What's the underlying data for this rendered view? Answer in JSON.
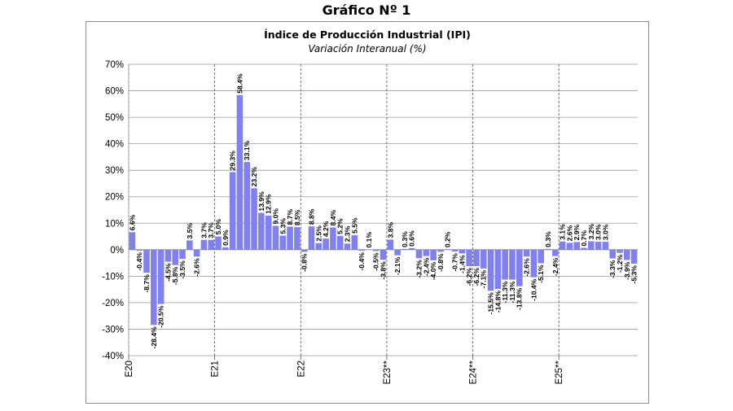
{
  "figure_title": "Gráfico Nº 1",
  "chart_data": {
    "type": "bar",
    "title": "Índice de Producción Industrial (IPI)",
    "subtitle": "Variación Interanual (%)",
    "xlabel": "",
    "ylabel": "",
    "ylim": [
      -40,
      70
    ],
    "ytick_values": [
      70,
      60,
      50,
      40,
      30,
      20,
      10,
      0,
      -10,
      -20,
      -30,
      -40
    ],
    "ytick_labels": [
      "70%",
      "60%",
      "50%",
      "40%",
      "30%",
      "20%",
      "10%",
      "0%",
      "-10%",
      "-20%",
      "-30%",
      "-40%"
    ],
    "grid": {
      "horizontal": true,
      "vertical_dashed_at_year_start": true
    },
    "bar_color": "#8080f0",
    "year_ticks": [
      {
        "index": 0,
        "label": "E20"
      },
      {
        "index": 12,
        "label": "E21"
      },
      {
        "index": 24,
        "label": "E22"
      },
      {
        "index": 36,
        "label": "E23**"
      },
      {
        "index": 48,
        "label": "E24**"
      },
      {
        "index": 60,
        "label": "E25**"
      }
    ],
    "values": [
      6.6,
      -0.4,
      -8.7,
      -28.4,
      -20.5,
      -4.5,
      -5.8,
      -3.5,
      3.5,
      -2.6,
      3.7,
      3.7,
      5.0,
      0.9,
      29.3,
      58.4,
      33.1,
      23.2,
      13.9,
      12.9,
      9.0,
      5.3,
      8.7,
      8.5,
      -0.8,
      8.8,
      2.5,
      4.2,
      8.4,
      5.2,
      2.3,
      5.5,
      -0.4,
      0.1,
      -0.5,
      -3.8,
      3.8,
      -2.1,
      0.3,
      0.6,
      -3.2,
      -2.4,
      -4.0,
      -0.8,
      0.2,
      -0.7,
      -1.4,
      -6.2,
      -6.2,
      -7.1,
      -15.5,
      -14.8,
      -11.3,
      -11.3,
      -13.8,
      -2.6,
      -10.4,
      -5.1,
      0.3,
      -2.4,
      3.1,
      2.6,
      2.9,
      0.7,
      3.2,
      3.0,
      3.0,
      -3.3,
      -1.2,
      -3.9,
      -5.3
    ],
    "labels": [
      "6.6%",
      "-0.4%",
      "-8.7%",
      "-28.4%",
      "-20.5%",
      "-4.5%",
      "-5.8%",
      "-3.5%",
      "3.5%",
      "-2.6%",
      "3.7%",
      "3.7%",
      "5.0%",
      "0.9%",
      "29.3%",
      "58.4%",
      "33.1%",
      "23.2%",
      "13.9%",
      "12.9%",
      "9.0%",
      "5.3%",
      "8.7%",
      "8.5%",
      "-0.8%",
      "8.8%",
      "2.5%",
      "4.2%",
      "8.4%",
      "5.2%",
      "2.3%",
      "5.5%",
      "-0.4%",
      "0.1%",
      "-0.5%",
      "-3.8%",
      "3.8%",
      "-2.1%",
      "0.3%",
      "0.6%",
      "-3.2%",
      "-2.4%",
      "-4.0%",
      "-0.8%",
      "0.2%",
      "-0.7%",
      "-1.4%",
      "-6.2%",
      "-6.2%",
      "-7.1%",
      "-15.5%",
      "-14.8%",
      "-11.3%",
      "-11.3%",
      "-13.8%",
      "-2.6%",
      "-10.4%",
      "-5.1%",
      "0.3%",
      "-2.4%",
      "3.1%",
      "2.6%",
      "2.9%",
      "0.7%",
      "3.2%",
      "3.0%",
      "3.0%",
      "-3.3%",
      "-1.2%",
      "-3.9%",
      "-5.3%"
    ]
  }
}
